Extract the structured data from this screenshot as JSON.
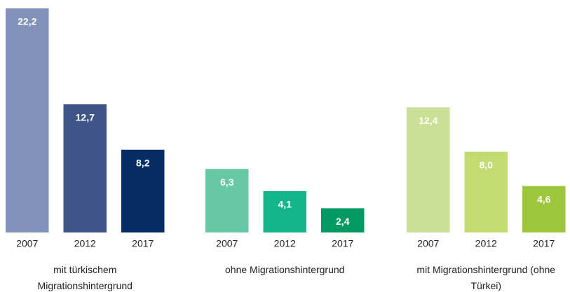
{
  "chart_data": {
    "type": "bar",
    "groups": [
      {
        "name": "mit türkischem Migrationshintergrund",
        "categories": [
          "2007",
          "2012",
          "2017"
        ],
        "values": [
          22.2,
          12.7,
          8.2
        ],
        "value_labels": [
          "22,2",
          "12,7",
          "8,2"
        ],
        "colors": [
          "#8191b9",
          "#3f5589",
          "#062c66"
        ]
      },
      {
        "name": "ohne Migrationshintergrund",
        "categories": [
          "2007",
          "2012",
          "2017"
        ],
        "values": [
          6.3,
          4.1,
          2.4
        ],
        "value_labels": [
          "6,3",
          "4,1",
          "2,4"
        ],
        "colors": [
          "#67c8a6",
          "#14b58a",
          "#009a62"
        ]
      },
      {
        "name": "mit Migrationshintergrund (ohne Türkei)",
        "categories": [
          "2007",
          "2012",
          "2017"
        ],
        "values": [
          12.4,
          8.0,
          4.6
        ],
        "value_labels": [
          "12,4",
          "8,0",
          "4,6"
        ],
        "colors": [
          "#c9e096",
          "#c2dc72",
          "#9ec63c"
        ]
      }
    ]
  }
}
